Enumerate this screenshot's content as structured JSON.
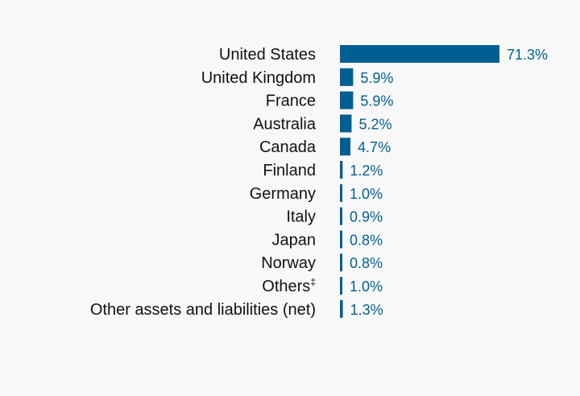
{
  "chart_data": {
    "type": "bar",
    "orientation": "horizontal",
    "categories": [
      "United States",
      "United Kingdom",
      "France",
      "Australia",
      "Canada",
      "Finland",
      "Germany",
      "Italy",
      "Japan",
      "Norway",
      "Others",
      "Other assets and liabilities (net)"
    ],
    "values": [
      71.3,
      5.9,
      5.9,
      5.2,
      4.7,
      1.2,
      1.0,
      0.9,
      0.8,
      0.8,
      1.0,
      1.3
    ],
    "value_labels": [
      "71.3%",
      "5.9%",
      "5.9%",
      "5.2%",
      "4.7%",
      "1.2%",
      "1.0%",
      "0.9%",
      "0.8%",
      "0.8%",
      "1.0%",
      "1.3%"
    ],
    "footnote_marks": [
      "",
      "",
      "",
      "",
      "",
      "",
      "",
      "",
      "",
      "",
      "‡",
      ""
    ],
    "title": "",
    "xlabel": "",
    "ylabel": "",
    "xlim": [
      0,
      71.3
    ],
    "grid": false,
    "legend": "none",
    "colors": {
      "bar": "#005f92",
      "value_text": "#005f92",
      "category_text": "#111111",
      "background": "#f8f8f8"
    }
  }
}
